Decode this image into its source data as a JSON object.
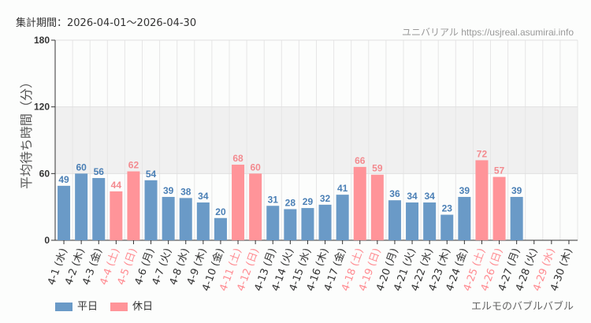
{
  "header": {
    "period": "集計期間：2026-04-01～2026-04-30",
    "site": "ユニバリアル  https://usjreal.asumirai.info"
  },
  "attraction": "エルモのバブルバブル",
  "chart_data": {
    "type": "bar",
    "ylabel": "平均待ち時間（分）",
    "ylim": [
      0,
      180
    ],
    "yticks": [
      0,
      60,
      120,
      180
    ],
    "shaded_band": [
      60,
      120
    ],
    "grid": true,
    "legend": {
      "position": "bottom-left",
      "entries": [
        {
          "name": "平日",
          "color": "#6a9ac7"
        },
        {
          "name": "休日",
          "color": "#ff9499"
        }
      ]
    },
    "categories": [
      "4-1 (水)",
      "4-2 (木)",
      "4-3 (金)",
      "4-4 (土)",
      "4-5 (日)",
      "4-6 (月)",
      "4-7 (火)",
      "4-8 (水)",
      "4-9 (木)",
      "4-10 (金)",
      "4-11 (土)",
      "4-12 (日)",
      "4-13 (月)",
      "4-14 (火)",
      "4-15 (水)",
      "4-16 (木)",
      "4-17 (金)",
      "4-18 (土)",
      "4-19 (日)",
      "4-20 (月)",
      "4-21 (火)",
      "4-22 (水)",
      "4-23 (木)",
      "4-24 (金)",
      "4-25 (土)",
      "4-26 (日)",
      "4-27 (月)",
      "4-28 (火)",
      "4-29 (水)",
      "4-30 (木)"
    ],
    "values": [
      49,
      60,
      56,
      44,
      62,
      54,
      39,
      38,
      34,
      20,
      68,
      60,
      31,
      28,
      29,
      32,
      41,
      66,
      59,
      36,
      34,
      34,
      23,
      39,
      72,
      57,
      39,
      null,
      null,
      null
    ],
    "holiday": [
      false,
      false,
      false,
      true,
      true,
      false,
      false,
      false,
      false,
      false,
      true,
      true,
      false,
      false,
      false,
      false,
      false,
      true,
      true,
      false,
      false,
      false,
      false,
      false,
      true,
      true,
      false,
      false,
      true,
      false
    ]
  }
}
